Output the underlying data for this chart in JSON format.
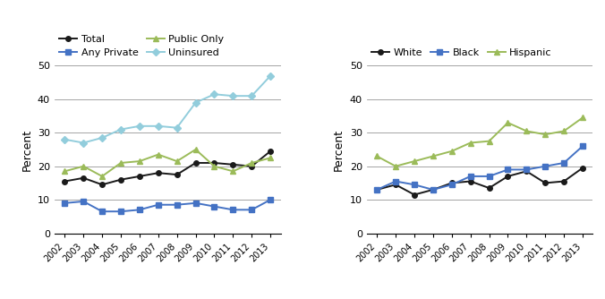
{
  "years": [
    2002,
    2003,
    2004,
    2005,
    2006,
    2007,
    2008,
    2009,
    2010,
    2011,
    2012,
    2013
  ],
  "left": {
    "Total": [
      15.5,
      16.5,
      14.5,
      16.0,
      17.0,
      18.0,
      17.5,
      21.0,
      21.0,
      20.5,
      20.0,
      24.5
    ],
    "Any Private": [
      9.0,
      9.5,
      6.5,
      6.5,
      7.0,
      8.5,
      8.5,
      9.0,
      8.0,
      7.0,
      7.0,
      10.0
    ],
    "Public Only": [
      18.5,
      20.0,
      17.0,
      21.0,
      21.5,
      23.5,
      21.5,
      25.0,
      20.0,
      18.5,
      21.0,
      22.5
    ],
    "Uninsured": [
      28.0,
      27.0,
      28.5,
      31.0,
      32.0,
      32.0,
      31.5,
      39.0,
      41.5,
      41.0,
      41.0,
      47.0
    ]
  },
  "right": {
    "White": [
      13.0,
      14.5,
      11.5,
      13.0,
      15.0,
      15.5,
      13.5,
      17.0,
      18.5,
      15.0,
      15.5,
      19.5
    ],
    "Black": [
      13.0,
      15.5,
      14.5,
      13.0,
      14.5,
      17.0,
      17.0,
      19.0,
      19.0,
      20.0,
      21.0,
      26.0
    ],
    "Hispanic": [
      23.0,
      20.0,
      21.5,
      23.0,
      24.5,
      27.0,
      27.5,
      33.0,
      30.5,
      29.5,
      30.5,
      34.5
    ]
  },
  "left_colors": {
    "Total": "#1a1a1a",
    "Any Private": "#4472c4",
    "Public Only": "#9bbb59",
    "Uninsured": "#92cddc"
  },
  "right_colors": {
    "White": "#1a1a1a",
    "Black": "#4472c4",
    "Hispanic": "#9bbb59"
  },
  "left_markers": {
    "Total": "o",
    "Any Private": "s",
    "Public Only": "^",
    "Uninsured": "D"
  },
  "right_markers": {
    "White": "o",
    "Black": "s",
    "Hispanic": "^"
  },
  "left_legend_order": [
    "Total",
    "Any Private",
    "Public Only",
    "Uninsured"
  ],
  "right_legend_order": [
    "White",
    "Black",
    "Hispanic"
  ],
  "ylim": [
    0,
    50
  ],
  "yticks": [
    0,
    10,
    20,
    30,
    40,
    50
  ],
  "ylabel": "Percent",
  "background_color": "#ffffff"
}
